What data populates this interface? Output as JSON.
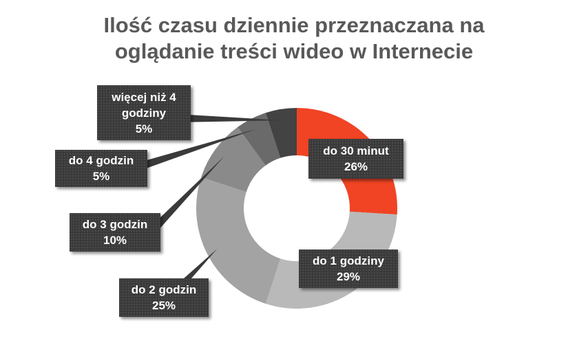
{
  "chart_data": {
    "type": "pie",
    "title_lines": [
      "Ilość czasu dziennie przeznaczana na",
      "oglądanie treści wideo w Internecie"
    ],
    "categories": [
      "do 30 minut",
      "do 1 godziny",
      "do 2 godzin",
      "do 3 godzin",
      "do 4 godzin",
      "więcej niż 4 godziny"
    ],
    "values": [
      26,
      29,
      25,
      10,
      5,
      5
    ],
    "value_labels": [
      "26%",
      "29%",
      "25%",
      "10%",
      "5%",
      "5%"
    ],
    "label_lines": [
      [
        "do 30 minut",
        "26%"
      ],
      [
        "do 1 godziny",
        "29%"
      ],
      [
        "do 2 godzin",
        "25%"
      ],
      [
        "do 3 godzin",
        "10%"
      ],
      [
        "do 4 godzin",
        "5%"
      ],
      [
        "więcej niż 4",
        "godziny",
        "5%"
      ]
    ],
    "colors": [
      "#f04424",
      "#b9b9b9",
      "#a3a3a3",
      "#8a8a8a",
      "#6a6a6a",
      "#434343"
    ],
    "donut": true,
    "legend": "none"
  }
}
